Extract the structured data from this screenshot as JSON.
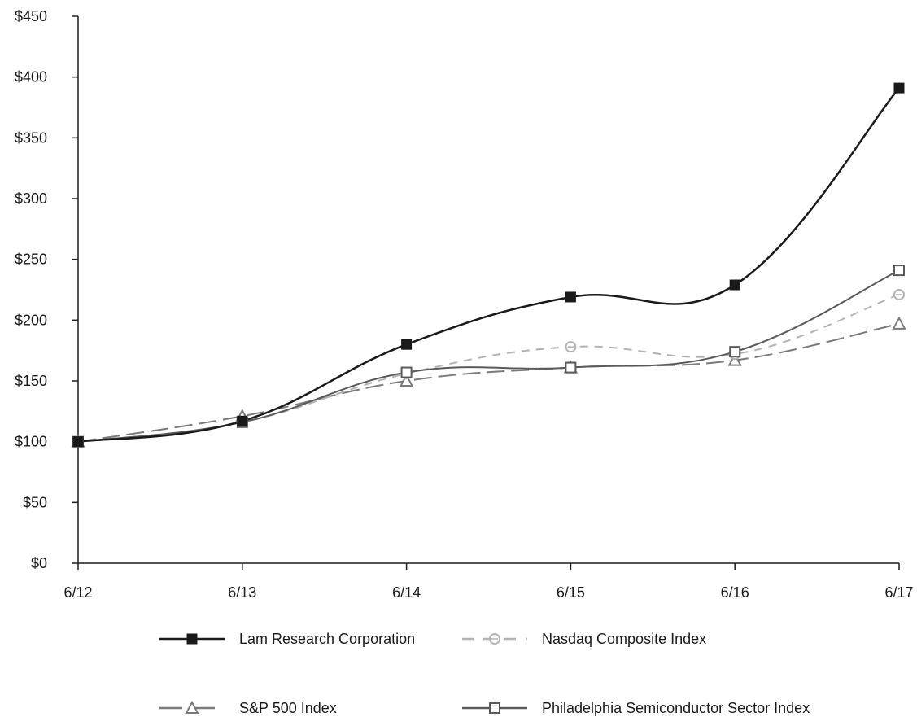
{
  "chart_data": {
    "type": "line",
    "categories": [
      "6/12",
      "6/13",
      "6/14",
      "6/15",
      "6/16",
      "6/17"
    ],
    "ylim": [
      0,
      450
    ],
    "y_ticks": [
      0,
      50,
      100,
      150,
      200,
      250,
      300,
      350,
      400,
      450
    ],
    "y_tick_labels": [
      "$0",
      "$50",
      "$100",
      "$150",
      "$200",
      "$250",
      "$300",
      "$350",
      "$400",
      "$450"
    ],
    "grid": false,
    "legend_position": "bottom",
    "series": [
      {
        "name": "Lam Research Corporation",
        "values": [
          100,
          117,
          180,
          219,
          229,
          391
        ],
        "color": "#1a1a1a",
        "dash": "solid",
        "marker": "filled-square",
        "icon": "filled-square-icon"
      },
      {
        "name": "Nasdaq Composite Index",
        "values": [
          100,
          116,
          156,
          178,
          172,
          221
        ],
        "color": "#b3b3b3",
        "dash": "dashed",
        "marker": "circle",
        "icon": "circle-icon"
      },
      {
        "name": "S&P 500 Index",
        "values": [
          100,
          121,
          150,
          161,
          167,
          197
        ],
        "color": "#7a7a7a",
        "dash": "long-dashed",
        "marker": "triangle",
        "icon": "triangle-icon"
      },
      {
        "name": "Philadelphia Semiconductor Sector Index",
        "values": [
          100,
          116,
          157,
          161,
          174,
          241
        ],
        "color": "#5a5a5a",
        "dash": "solid",
        "marker": "open-square",
        "icon": "open-square-icon"
      }
    ]
  }
}
